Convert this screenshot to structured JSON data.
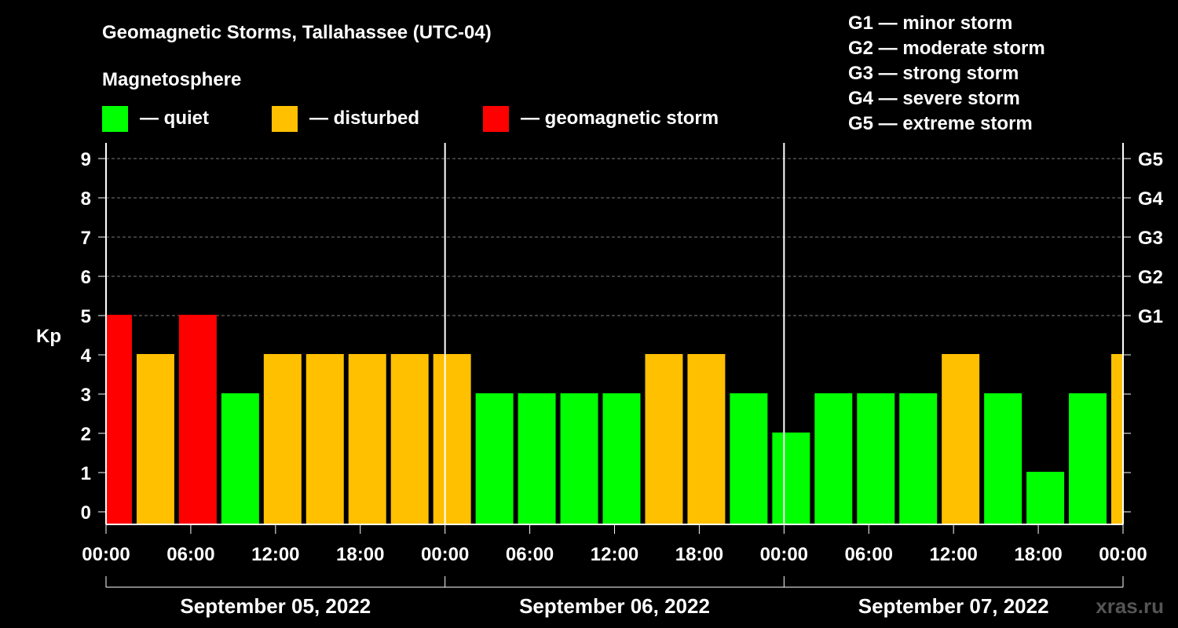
{
  "chart_data": {
    "type": "bar",
    "title": "Geomagnetic Storms, Tallahassee (UTC-04)",
    "legend_heading": "Magnetosphere",
    "legend": [
      {
        "label": "— quiet",
        "color": "#00ff00"
      },
      {
        "label": "— disturbed",
        "color": "#ffc000"
      },
      {
        "label": "— geomagnetic storm",
        "color": "#ff0000"
      }
    ],
    "storm_scale": [
      "G1 — minor storm",
      "G2 — moderate storm",
      "G3 — strong storm",
      "G4 — severe storm",
      "G5 — extreme storm"
    ],
    "ylabel": "Kp",
    "ylim": [
      0,
      9
    ],
    "yticks": [
      "0",
      "1",
      "2",
      "3",
      "4",
      "5",
      "6",
      "7",
      "8",
      "9"
    ],
    "right_ticks": [
      {
        "kp": 5,
        "label": "G1"
      },
      {
        "kp": 6,
        "label": "G2"
      },
      {
        "kp": 7,
        "label": "G3"
      },
      {
        "kp": 8,
        "label": "G4"
      },
      {
        "kp": 9,
        "label": "G5"
      }
    ],
    "xlim_hours": [
      0,
      72
    ],
    "xticks": [
      {
        "h": 0,
        "label": "00:00"
      },
      {
        "h": 6,
        "label": "06:00"
      },
      {
        "h": 12,
        "label": "12:00"
      },
      {
        "h": 18,
        "label": "18:00"
      },
      {
        "h": 24,
        "label": "00:00"
      },
      {
        "h": 30,
        "label": "06:00"
      },
      {
        "h": 36,
        "label": "12:00"
      },
      {
        "h": 42,
        "label": "18:00"
      },
      {
        "h": 48,
        "label": "00:00"
      },
      {
        "h": 54,
        "label": "06:00"
      },
      {
        "h": 60,
        "label": "12:00"
      },
      {
        "h": 66,
        "label": "18:00"
      },
      {
        "h": 72,
        "label": "00:00"
      }
    ],
    "day_separators_hours": [
      24,
      48
    ],
    "dates": [
      "September 05, 2022",
      "September 06, 2022",
      "September 07, 2022"
    ],
    "bars": [
      {
        "start": 0,
        "end": 2,
        "kp": 5
      },
      {
        "start": 2,
        "end": 5,
        "kp": 4
      },
      {
        "start": 5,
        "end": 8,
        "kp": 5
      },
      {
        "start": 8,
        "end": 11,
        "kp": 3
      },
      {
        "start": 11,
        "end": 14,
        "kp": 4
      },
      {
        "start": 14,
        "end": 17,
        "kp": 4
      },
      {
        "start": 17,
        "end": 20,
        "kp": 4
      },
      {
        "start": 20,
        "end": 23,
        "kp": 4
      },
      {
        "start": 23,
        "end": 26,
        "kp": 4
      },
      {
        "start": 26,
        "end": 29,
        "kp": 3
      },
      {
        "start": 29,
        "end": 32,
        "kp": 3
      },
      {
        "start": 32,
        "end": 35,
        "kp": 3
      },
      {
        "start": 35,
        "end": 38,
        "kp": 3
      },
      {
        "start": 38,
        "end": 41,
        "kp": 4
      },
      {
        "start": 41,
        "end": 44,
        "kp": 4
      },
      {
        "start": 44,
        "end": 47,
        "kp": 3
      },
      {
        "start": 47,
        "end": 50,
        "kp": 2
      },
      {
        "start": 50,
        "end": 53,
        "kp": 3
      },
      {
        "start": 53,
        "end": 56,
        "kp": 3
      },
      {
        "start": 56,
        "end": 59,
        "kp": 3
      },
      {
        "start": 59,
        "end": 62,
        "kp": 4
      },
      {
        "start": 62,
        "end": 65,
        "kp": 3
      },
      {
        "start": 65,
        "end": 68,
        "kp": 1
      },
      {
        "start": 68,
        "end": 71,
        "kp": 3
      },
      {
        "start": 71,
        "end": 72,
        "kp": 4
      }
    ],
    "colors": {
      "quiet": "#00ff00",
      "disturbed": "#ffc000",
      "storm": "#ff0000"
    },
    "watermark": "xras.ru"
  }
}
